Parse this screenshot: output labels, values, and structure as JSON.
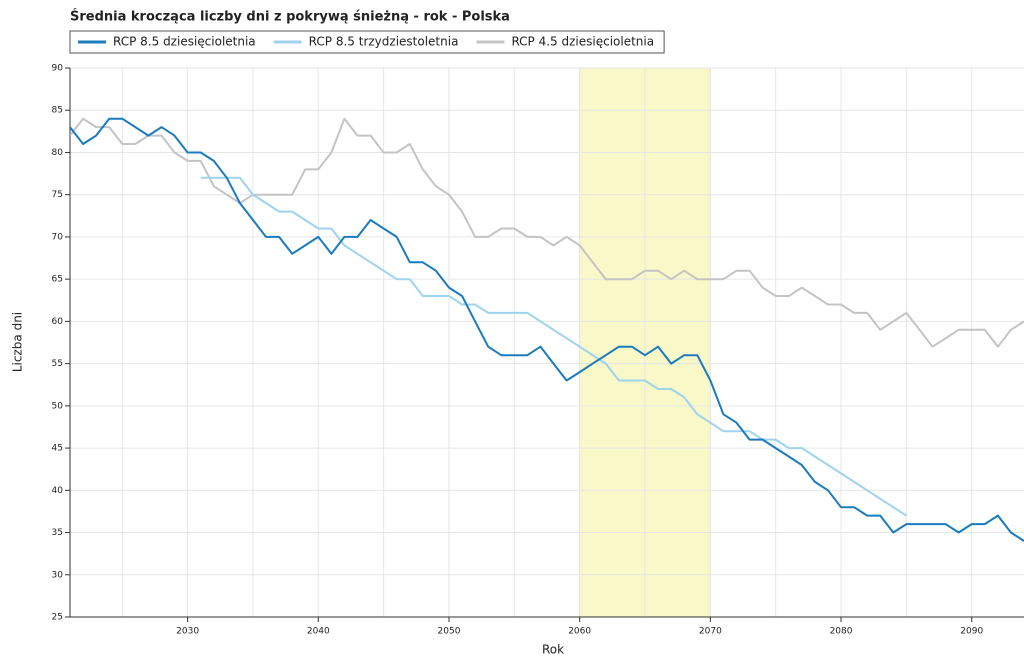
{
  "chart_data": {
    "type": "line",
    "title": "Średnia krocząca liczby dni z pokrywą śnieżną - rok - Polska",
    "x_label": "Rok",
    "y_label": "Liczba dni",
    "x": [
      2021,
      2022,
      2023,
      2024,
      2025,
      2026,
      2027,
      2028,
      2029,
      2030,
      2031,
      2032,
      2033,
      2034,
      2035,
      2036,
      2037,
      2038,
      2039,
      2040,
      2041,
      2042,
      2043,
      2044,
      2045,
      2046,
      2047,
      2048,
      2049,
      2050,
      2051,
      2052,
      2053,
      2054,
      2055,
      2056,
      2057,
      2058,
      2059,
      2060,
      2061,
      2062,
      2063,
      2064,
      2065,
      2066,
      2067,
      2068,
      2069,
      2070,
      2071,
      2072,
      2073,
      2074,
      2075,
      2076,
      2077,
      2078,
      2079,
      2080,
      2081,
      2082,
      2083,
      2084,
      2085,
      2086,
      2087,
      2088,
      2089,
      2090,
      2091,
      2092,
      2093,
      2094
    ],
    "series": [
      {
        "name": "RCP 8.5 dziesięcioletnia",
        "color": "#1b7bbf",
        "values": [
          83,
          81,
          82,
          84,
          84,
          83,
          82,
          83,
          82,
          80,
          80,
          79,
          77,
          74,
          72,
          70,
          70,
          68,
          69,
          70,
          68,
          70,
          70,
          72,
          71,
          70,
          67,
          67,
          66,
          64,
          63,
          60,
          57,
          56,
          56,
          56,
          57,
          55,
          53,
          54,
          55,
          56,
          57,
          57,
          56,
          57,
          55,
          56,
          56,
          53,
          49,
          48,
          46,
          46,
          45,
          44,
          43,
          41,
          40,
          38,
          38,
          37,
          37,
          35,
          36,
          36,
          36,
          36,
          35,
          36,
          36,
          37,
          35,
          34
        ]
      },
      {
        "name": "RCP 8.5 trzydziestoletnia",
        "color": "#9fd3ee",
        "values": [
          null,
          null,
          null,
          null,
          null,
          null,
          null,
          null,
          null,
          null,
          77,
          77,
          77,
          77,
          75,
          74,
          73,
          73,
          72,
          71,
          71,
          69,
          68,
          67,
          66,
          65,
          65,
          63,
          63,
          63,
          62,
          62,
          61,
          61,
          61,
          61,
          60,
          59,
          58,
          57,
          56,
          55,
          53,
          53,
          53,
          52,
          52,
          51,
          49,
          48,
          47,
          47,
          47,
          46,
          46,
          45,
          45,
          44,
          43,
          42,
          41,
          40,
          39,
          38,
          37,
          null,
          null,
          null,
          null,
          null,
          null,
          null,
          null,
          null
        ]
      },
      {
        "name": "RCP 4.5 dziesięcioletnia",
        "color": "#c4c4c4",
        "values": [
          82,
          84,
          83,
          83,
          81,
          81,
          82,
          82,
          80,
          79,
          79,
          76,
          75,
          74,
          75,
          75,
          75,
          75,
          78,
          78,
          80,
          84,
          82,
          82,
          80,
          80,
          81,
          78,
          76,
          75,
          73,
          70,
          70,
          71,
          71,
          70,
          70,
          69,
          70,
          69,
          67,
          65,
          65,
          65,
          66,
          66,
          65,
          66,
          65,
          65,
          65,
          66,
          66,
          64,
          63,
          63,
          64,
          63,
          62,
          62,
          61,
          61,
          59,
          60,
          61,
          59,
          57,
          58,
          59,
          59,
          59,
          57,
          59,
          60
        ]
      }
    ],
    "xlim": [
      2021,
      2094
    ],
    "xticks": [
      2030,
      2040,
      2050,
      2060,
      2070,
      2080,
      2090
    ],
    "xminor": [
      2025,
      2035,
      2045,
      2055,
      2065,
      2075,
      2085
    ],
    "ylim": [
      25,
      90
    ],
    "yticks": [
      25,
      30,
      35,
      40,
      45,
      50,
      55,
      60,
      65,
      70,
      75,
      80,
      85,
      90
    ],
    "bands": [
      [
        2060,
        2065
      ],
      [
        2065,
        2070
      ]
    ],
    "band_color": "#f8f8c8",
    "grid": true
  }
}
